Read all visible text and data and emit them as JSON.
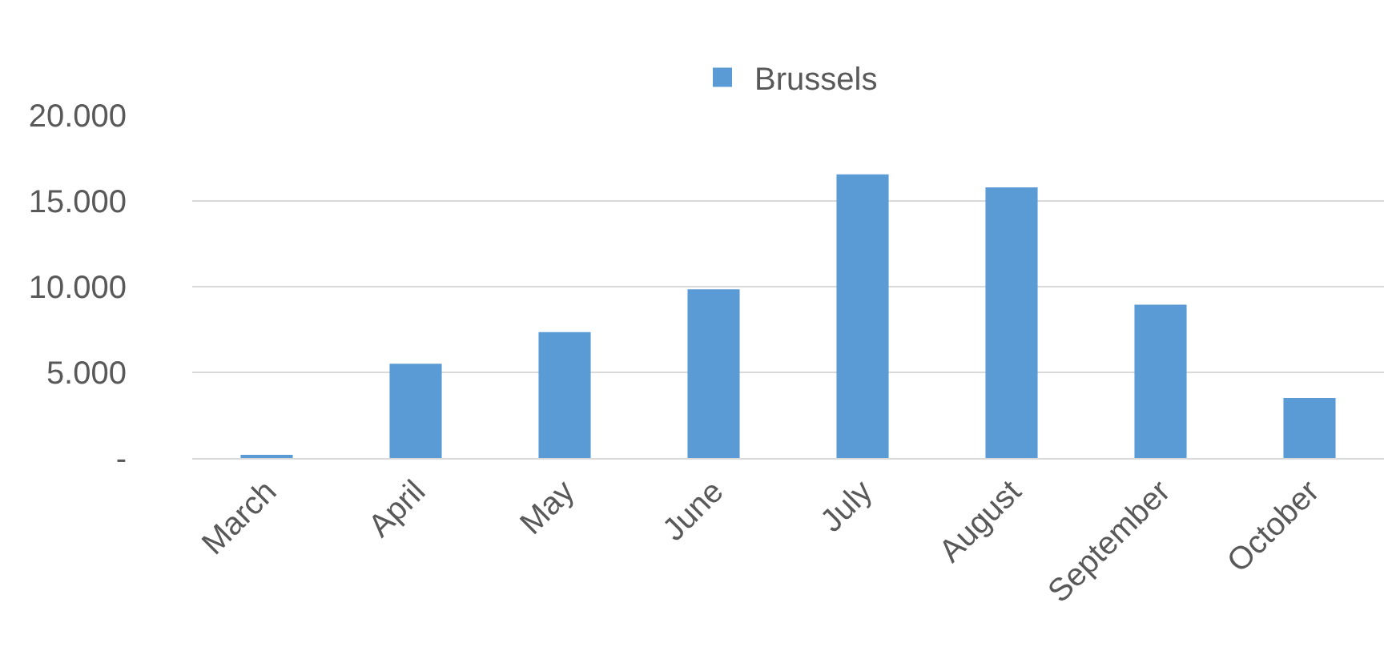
{
  "chart_data": {
    "type": "bar",
    "categories": [
      "March",
      "April",
      "May",
      "June",
      "July",
      "August",
      "September",
      "October"
    ],
    "series": [
      {
        "name": "Brussels",
        "color": "#5b9bd5",
        "values": [
          150,
          5500,
          7350,
          9850,
          16550,
          15800,
          8950,
          3500
        ]
      }
    ],
    "ylim": [
      0,
      20000
    ],
    "yticks": [
      {
        "value": 0,
        "label": "-"
      },
      {
        "value": 5000,
        "label": "5.000"
      },
      {
        "value": 10000,
        "label": "10.000"
      },
      {
        "value": 15000,
        "label": "15.000"
      },
      {
        "value": 20000,
        "label": "20.000"
      }
    ],
    "grid": "y",
    "legend": "top"
  }
}
